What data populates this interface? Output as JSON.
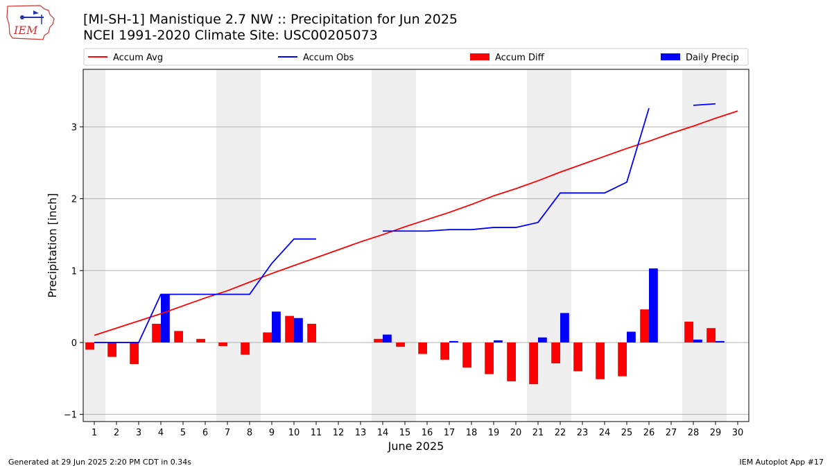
{
  "header": {
    "title": "[MI-SH-1] Manistique 2.7 NW :: Precipitation for Jun 2025",
    "subtitle": "NCEI 1991-2020 Climate Site: USC00205073",
    "logo_text": "IEM"
  },
  "footer": {
    "left": "Generated at 29 Jun 2025 2:20 PM CDT in 0.34s",
    "right": "IEM Autoplot App #17"
  },
  "colors": {
    "avg": "#ff0000",
    "obs": "#0000ff",
    "diff": "#ff0000",
    "daily": "#0000ff",
    "weekend": "#eeeeee",
    "grid": "#b0b0b0"
  },
  "chart_data": {
    "type": "bar",
    "xlabel": "June 2025",
    "ylabel": "Precipitation [inch]",
    "xlim": [
      0.5,
      30.5
    ],
    "ylim": [
      -1.1,
      3.8
    ],
    "yticks": [
      -1,
      0,
      1,
      2,
      3
    ],
    "grid": "horizontal",
    "legend_position": "top",
    "days": [
      1,
      2,
      3,
      4,
      5,
      6,
      7,
      8,
      9,
      10,
      11,
      12,
      13,
      14,
      15,
      16,
      17,
      18,
      19,
      20,
      21,
      22,
      23,
      24,
      25,
      26,
      27,
      28,
      29,
      30
    ],
    "weekend_days": [
      1,
      7,
      8,
      14,
      15,
      21,
      22,
      28,
      29
    ],
    "series": [
      {
        "name": "Accum Avg",
        "kind": "line",
        "values": [
          0.1,
          0.2,
          0.3,
          0.4,
          0.51,
          0.62,
          0.72,
          0.84,
          0.96,
          1.07,
          1.18,
          1.29,
          1.4,
          1.5,
          1.61,
          1.71,
          1.81,
          1.92,
          2.04,
          2.14,
          2.25,
          2.37,
          2.48,
          2.59,
          2.7,
          2.8,
          2.91,
          3.01,
          3.12,
          3.22
        ]
      },
      {
        "name": "Accum Obs",
        "kind": "line",
        "values": [
          0.0,
          0.0,
          0.0,
          0.67,
          0.67,
          0.67,
          0.67,
          0.67,
          1.1,
          1.44,
          1.44,
          null,
          null,
          1.55,
          1.55,
          1.55,
          1.57,
          1.57,
          1.6,
          1.6,
          1.67,
          2.08,
          2.08,
          2.08,
          2.23,
          3.26,
          null,
          3.3,
          3.32,
          null
        ]
      },
      {
        "name": "Accum Diff",
        "kind": "bar",
        "values": [
          -0.1,
          -0.2,
          -0.3,
          0.26,
          0.16,
          0.05,
          -0.05,
          -0.17,
          0.14,
          0.37,
          0.26,
          null,
          null,
          0.05,
          -0.06,
          -0.16,
          -0.24,
          -0.35,
          -0.44,
          -0.54,
          -0.58,
          -0.29,
          -0.4,
          -0.51,
          -0.47,
          0.46,
          null,
          0.29,
          0.2,
          null
        ]
      },
      {
        "name": "Daily Precip",
        "kind": "bar",
        "values": [
          0.0,
          0.0,
          0.0,
          0.67,
          0.0,
          0.0,
          0.0,
          0.0,
          0.43,
          0.34,
          0.0,
          null,
          null,
          0.11,
          0.0,
          0.0,
          0.02,
          0.0,
          0.03,
          0.0,
          0.07,
          0.41,
          0.0,
          0.0,
          0.15,
          1.03,
          null,
          0.04,
          0.02,
          null
        ]
      }
    ]
  }
}
